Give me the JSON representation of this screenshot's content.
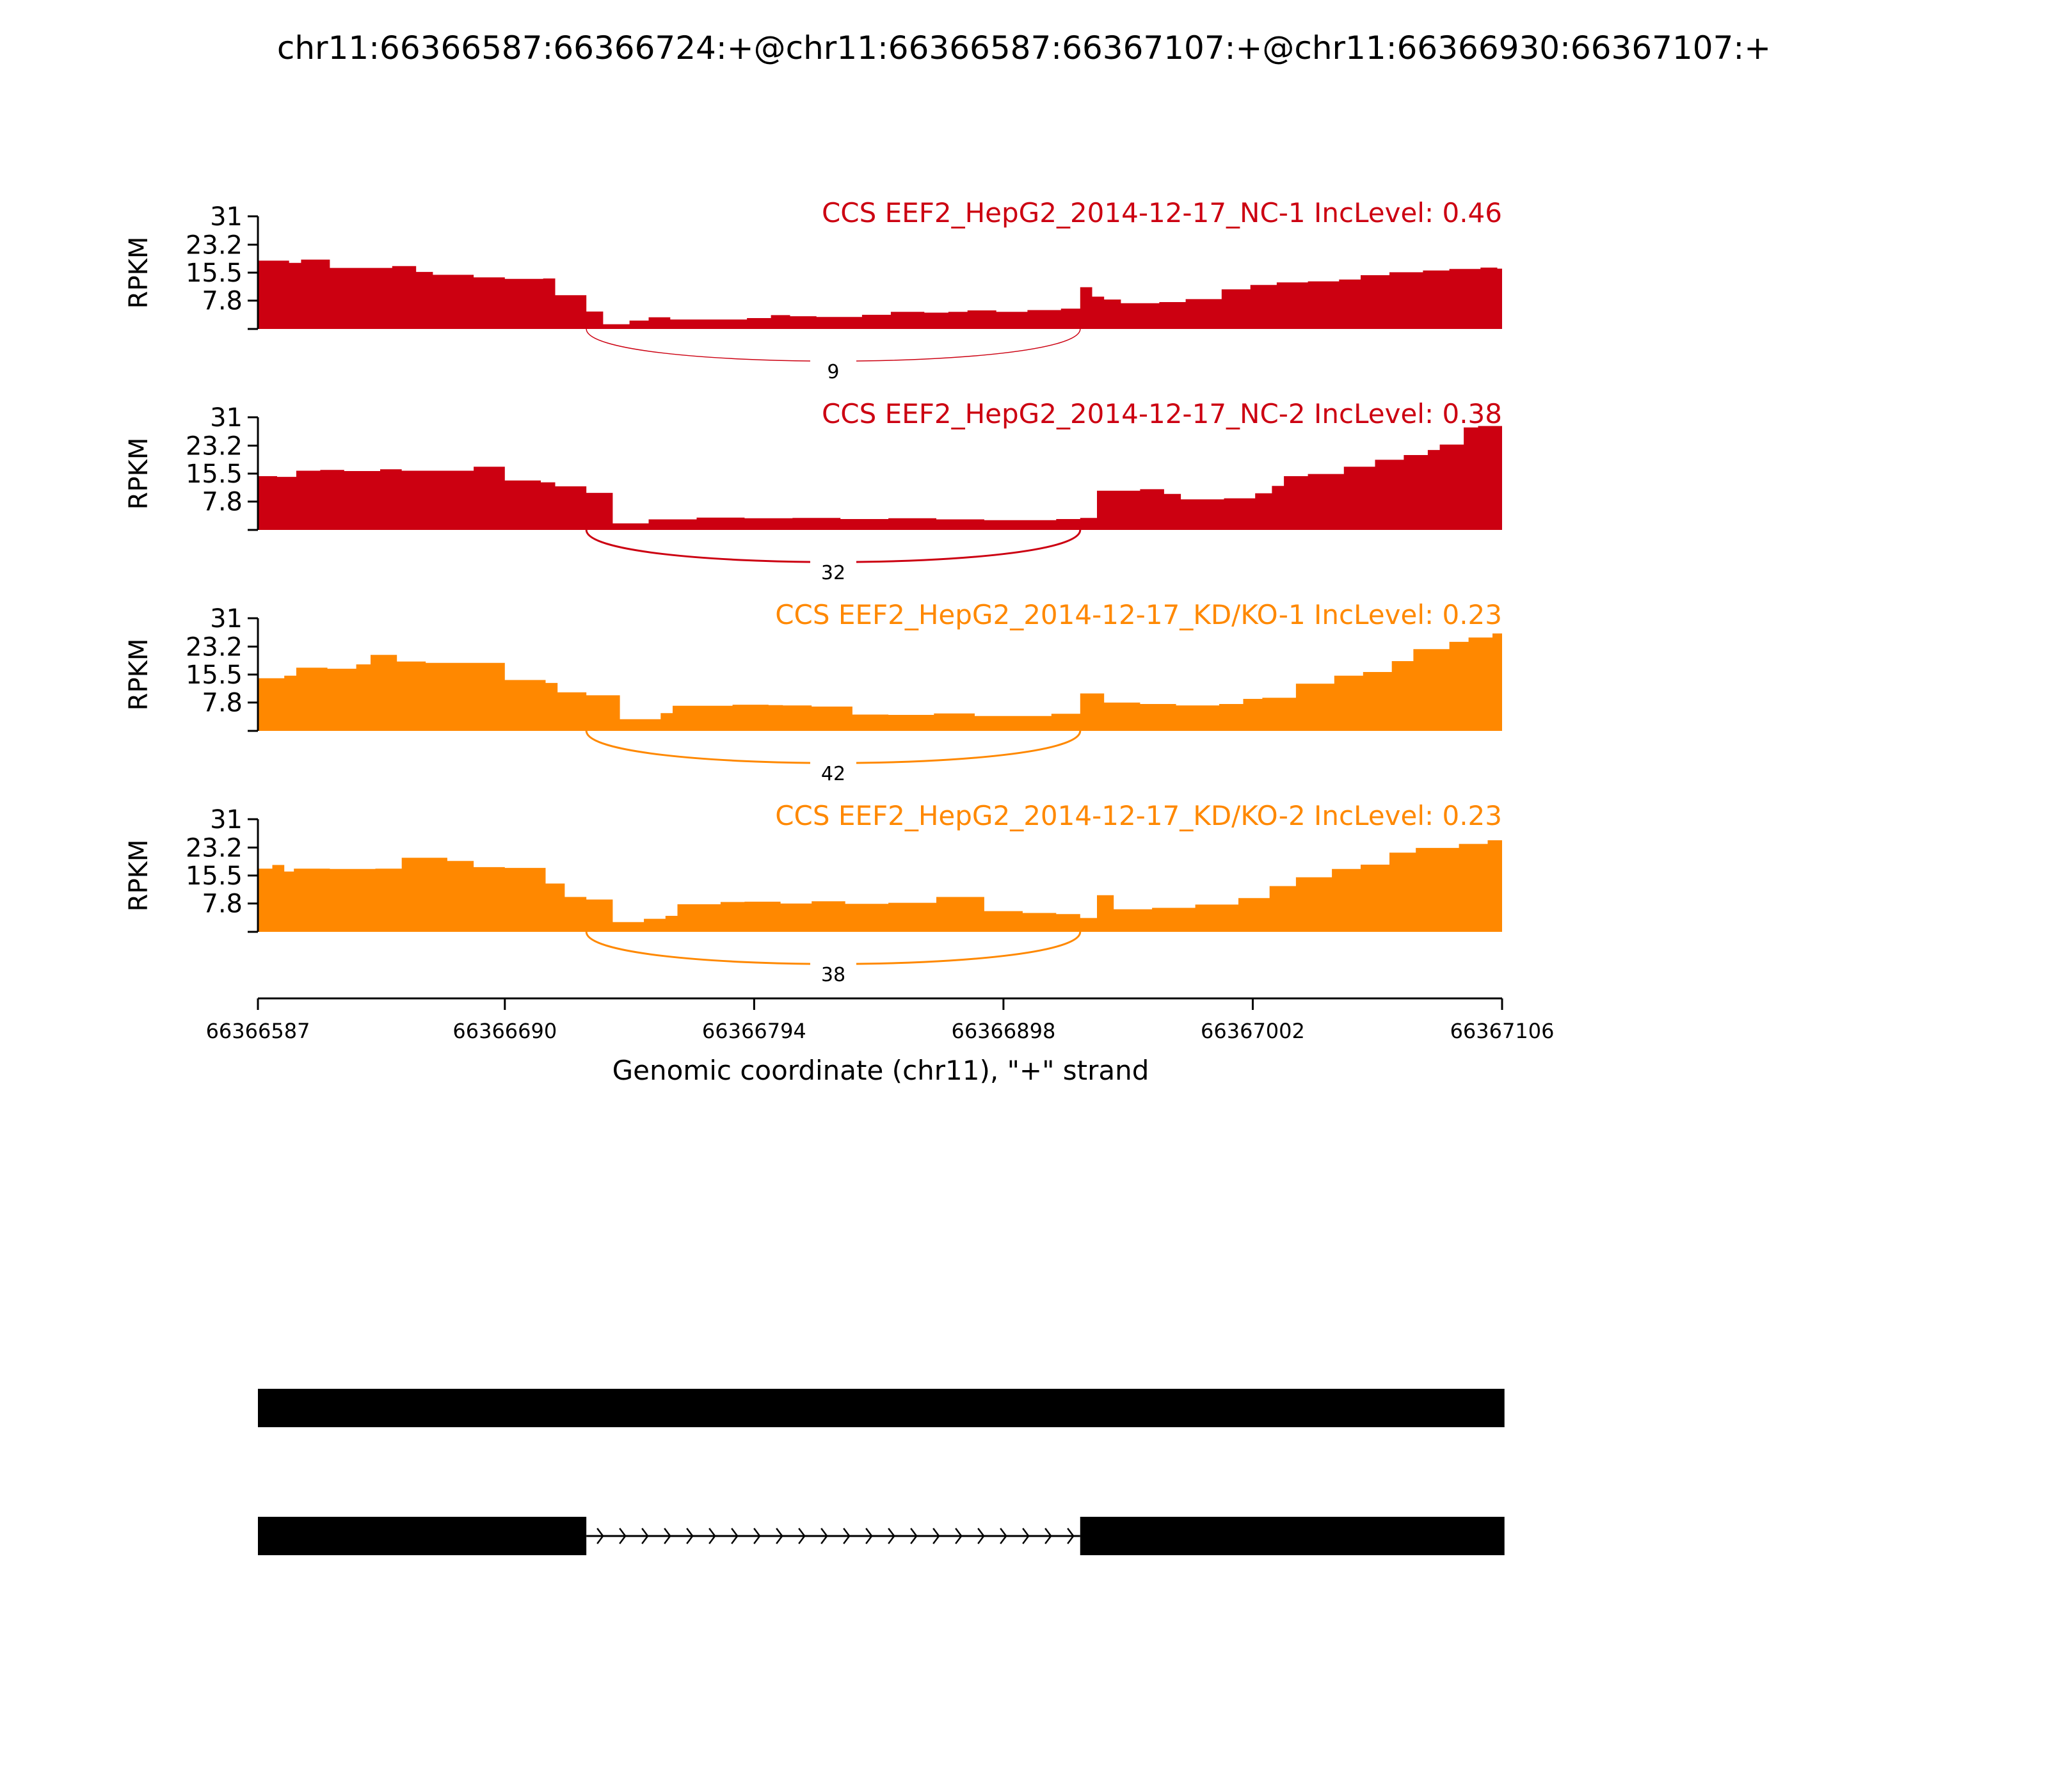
{
  "title": "chr11:66366587:66366724:+@chr11:66366587:66367107:+@chr11:66366930:66367107:+",
  "chart_data": {
    "type": "area",
    "ylabel": "RPKM",
    "ylim": [
      0,
      31
    ],
    "yticks": [
      "31",
      "23.2",
      "15.5",
      "7.8"
    ],
    "ytick_values": [
      31,
      23.2,
      15.5,
      7.8
    ],
    "x_range": [
      66366587,
      66367106
    ],
    "xticks": [
      "66366587",
      "66366690",
      "66366794",
      "66366898",
      "66367002",
      "66367106"
    ],
    "xtick_values": [
      66366587,
      66366690,
      66366794,
      66366898,
      66367002,
      66367106
    ],
    "xlabel": "Genomic coordinate (chr11), \"+\" strand",
    "junction": {
      "start": 66366724,
      "end": 66366930
    },
    "tracks": [
      {
        "name": "CCS EEF2_HepG2_2014-12-17_NC-1 IncLevel: 0.46",
        "color": "#cc0011",
        "junction_count": "9",
        "x": [
          66366587,
          66366600,
          66366605,
          66366617,
          66366633,
          66366643,
          66366653,
          66366660,
          66366677,
          66366690,
          66366706,
          66366711,
          66366724,
          66366731,
          66366742,
          66366750,
          66366759,
          66366781,
          66366791,
          66366801,
          66366809,
          66366820,
          66366839,
          66366851,
          66366865,
          66366875,
          66366883,
          66366895,
          66366908,
          66366922,
          66366930,
          66366935,
          66366940,
          66366947,
          66366963,
          66366974,
          66366989,
          66367001,
          66367012,
          66367025,
          66367038,
          66367047,
          66367059,
          66367073,
          66367084,
          66367097,
          66367104,
          66367106
        ],
        "y": [
          18.8,
          18.2,
          19.1,
          16.8,
          16.8,
          17.3,
          15.7,
          14.9,
          14.2,
          13.8,
          13.9,
          9.3,
          4.8,
          1.3,
          2.3,
          3.2,
          2.6,
          2.6,
          3.0,
          3.8,
          3.5,
          3.3,
          3.9,
          4.7,
          4.5,
          4.7,
          5.1,
          4.7,
          5.2,
          5.6,
          11.5,
          8.9,
          8.1,
          7.1,
          7.4,
          8.2,
          10.9,
          12.1,
          12.8,
          13.1,
          13.6,
          14.8,
          15.6,
          16.1,
          16.5,
          16.9,
          16.6,
          16.0
        ]
      },
      {
        "name": "CCS EEF2_HepG2_2014-12-17_NC-2 IncLevel: 0.38",
        "color": "#cc0011",
        "junction_count": "32",
        "x": [
          66366587,
          66366595,
          66366603,
          66366613,
          66366623,
          66366638,
          66366647,
          66366664,
          66366677,
          66366690,
          66366705,
          66366711,
          66366724,
          66366735,
          66366750,
          66366770,
          66366790,
          66366810,
          66366830,
          66366850,
          66366870,
          66366890,
          66366920,
          66366930,
          66366937,
          66366942,
          66366955,
          66366965,
          66366972,
          66366990,
          66367003,
          66367010,
          66367015,
          66367025,
          66367040,
          66367053,
          66367065,
          66367075,
          66367080,
          66367090,
          66367096,
          66367106
        ],
        "y": [
          14.8,
          14.6,
          16.3,
          16.5,
          16.2,
          16.7,
          16.3,
          16.3,
          17.4,
          13.6,
          13.1,
          12.0,
          10.2,
          1.8,
          2.9,
          3.4,
          3.2,
          3.3,
          3.0,
          3.2,
          2.9,
          2.7,
          3.0,
          3.3,
          10.8,
          10.8,
          11.2,
          9.9,
          8.4,
          8.7,
          10.1,
          12.1,
          14.8,
          15.4,
          17.4,
          19.3,
          20.6,
          22.0,
          23.5,
          28.2,
          28.6,
          27.3
        ]
      },
      {
        "name": "CCS EEF2_HepG2_2014-12-17_KD/KO-1 IncLevel: 0.23",
        "color": "#ff8800",
        "junction_count": "42",
        "x": [
          66366587,
          66366598,
          66366603,
          66366616,
          66366628,
          66366634,
          66366645,
          66366657,
          66366677,
          66366690,
          66366707,
          66366712,
          66366724,
          66366738,
          66366755,
          66366760,
          66366785,
          66366800,
          66366806,
          66366818,
          66366835,
          66366850,
          66366869,
          66366886,
          66366902,
          66366918,
          66366930,
          66366940,
          66366955,
          66366970,
          66366988,
          66366998,
          66367006,
          66367020,
          66367036,
          66367048,
          66367060,
          66367069,
          66367084,
          66367092,
          66367102,
          66367106
        ],
        "y": [
          14.5,
          15.2,
          17.4,
          17.1,
          18.3,
          20.9,
          19.1,
          18.7,
          18.7,
          14.0,
          13.2,
          10.6,
          9.8,
          3.2,
          4.9,
          6.9,
          7.2,
          7.1,
          7.0,
          6.7,
          4.5,
          4.4,
          4.8,
          4.1,
          4.1,
          4.7,
          10.3,
          7.8,
          7.4,
          7.0,
          7.4,
          8.8,
          9.1,
          13.0,
          15.2,
          16.2,
          19.2,
          22.5,
          24.5,
          25.7,
          26.8,
          26.0
        ]
      },
      {
        "name": "CCS EEF2_HepG2_2014-12-17_KD/KO-2 IncLevel: 0.23",
        "color": "#ff8800",
        "junction_count": "38",
        "x": [
          66366587,
          66366593,
          66366598,
          66366602,
          66366617,
          66366636,
          66366647,
          66366666,
          66366677,
          66366690,
          66366707,
          66366715,
          66366724,
          66366735,
          66366748,
          66366757,
          66366762,
          66366780,
          66366790,
          66366805,
          66366818,
          66366832,
          66366850,
          66366870,
          66366890,
          66366906,
          66366920,
          66366930,
          66366937,
          66366944,
          66366960,
          66366978,
          66366996,
          66367009,
          66367020,
          66367035,
          66367047,
          66367059,
          66367070,
          66367088,
          66367100,
          66367106
        ],
        "y": [
          17.4,
          18.4,
          16.6,
          17.4,
          17.3,
          17.4,
          20.4,
          19.5,
          17.8,
          17.6,
          13.3,
          9.6,
          8.9,
          2.7,
          3.6,
          4.4,
          7.6,
          8.2,
          8.3,
          7.8,
          8.4,
          7.7,
          8.0,
          9.6,
          5.7,
          5.2,
          4.9,
          3.8,
          10.1,
          6.2,
          6.6,
          7.5,
          9.3,
          12.6,
          15.0,
          17.3,
          18.5,
          21.8,
          23.1,
          24.2,
          25.2,
          24.4
        ]
      }
    ]
  },
  "gene_model": {
    "isoform_1": {
      "exons": [
        [
          66366587,
          66367107
        ]
      ]
    },
    "isoform_2": {
      "exons": [
        [
          66366587,
          66366724
        ],
        [
          66366930,
          66367107
        ]
      ]
    }
  }
}
